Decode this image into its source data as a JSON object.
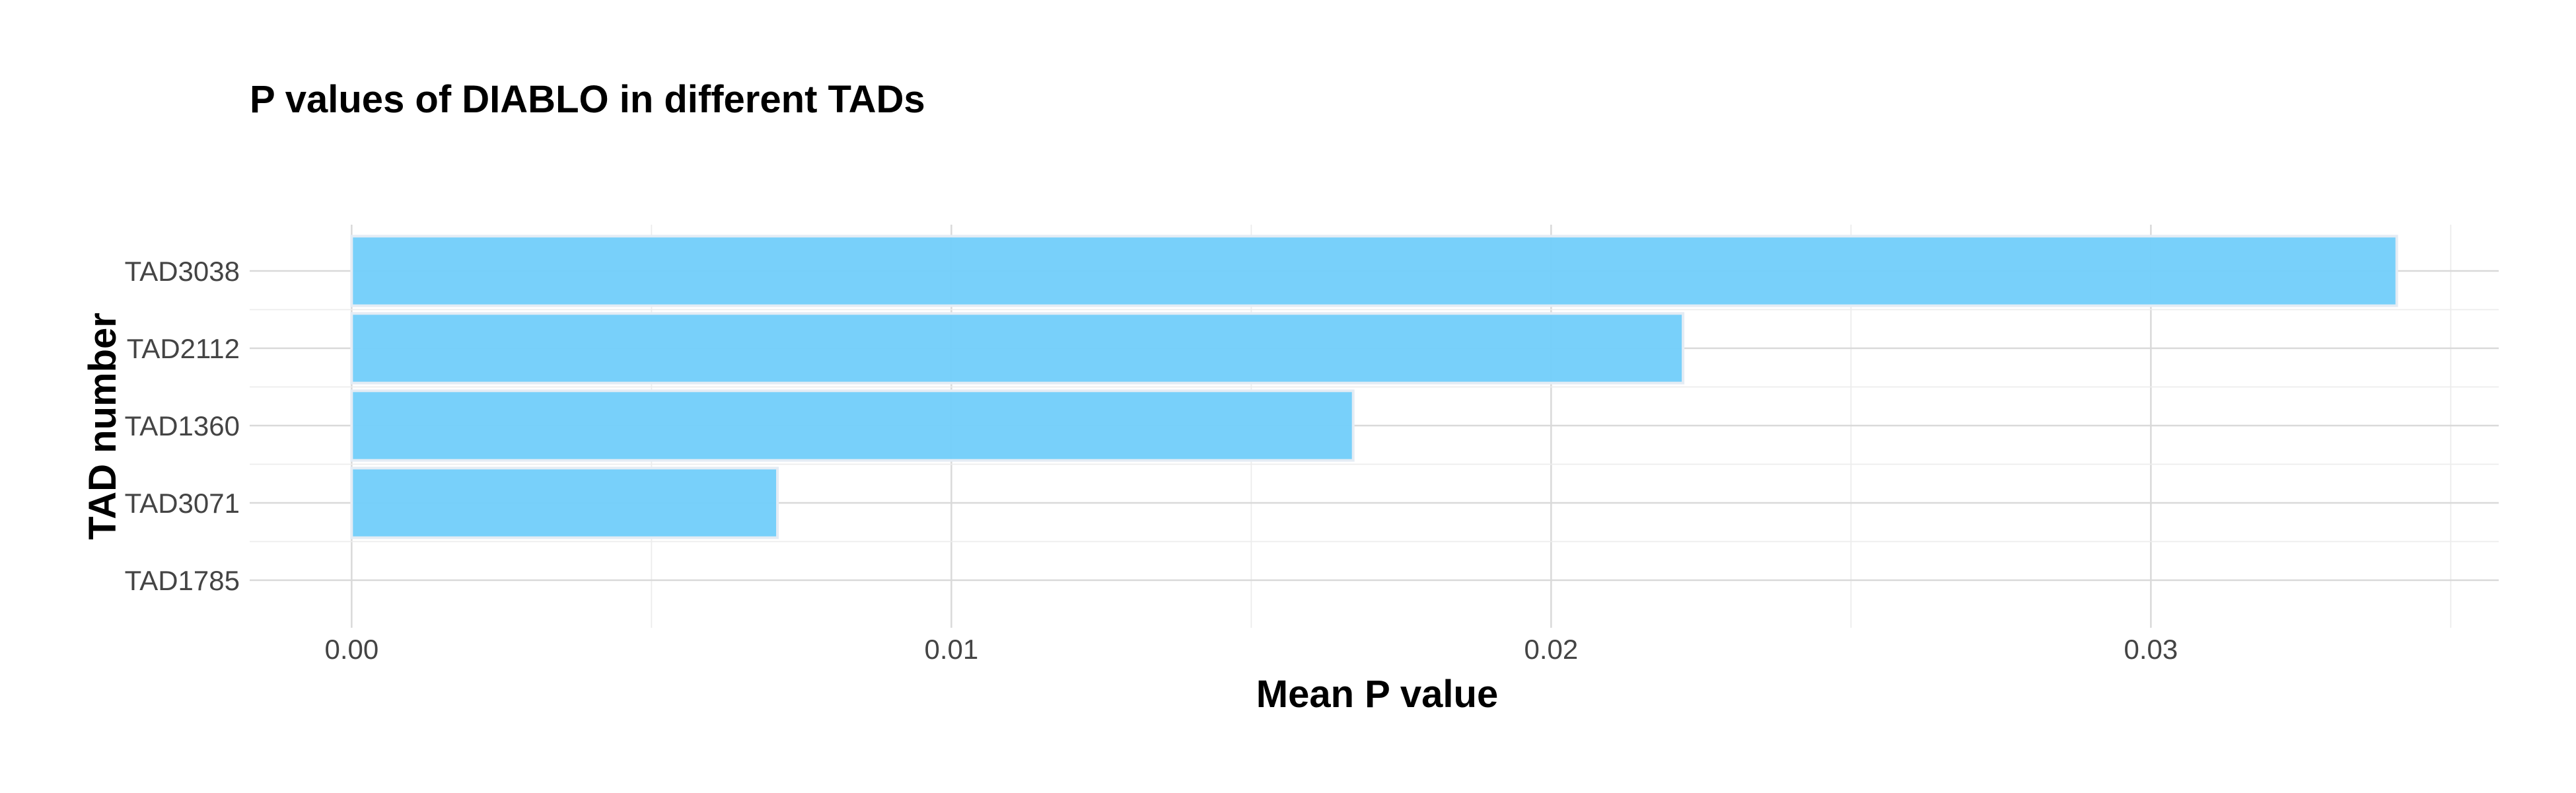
{
  "chart_data": {
    "type": "bar",
    "orientation": "horizontal",
    "title": "P values of DIABLO in different TADs",
    "xlabel": "Mean P value",
    "ylabel": "TAD number",
    "categories": [
      "TAD3038",
      "TAD2112",
      "TAD1360",
      "TAD3071",
      "TAD1785"
    ],
    "values": [
      0.0341,
      0.0222,
      0.0167,
      0.0071,
      0.0
    ],
    "xlim": [
      -0.0017,
      0.0358
    ],
    "xticks": [
      0.0,
      0.01,
      0.02,
      0.03
    ],
    "xtick_labels": [
      "0.00",
      "0.01",
      "0.02",
      "0.03"
    ],
    "grid": true,
    "bar_color": "#74CEFA"
  }
}
